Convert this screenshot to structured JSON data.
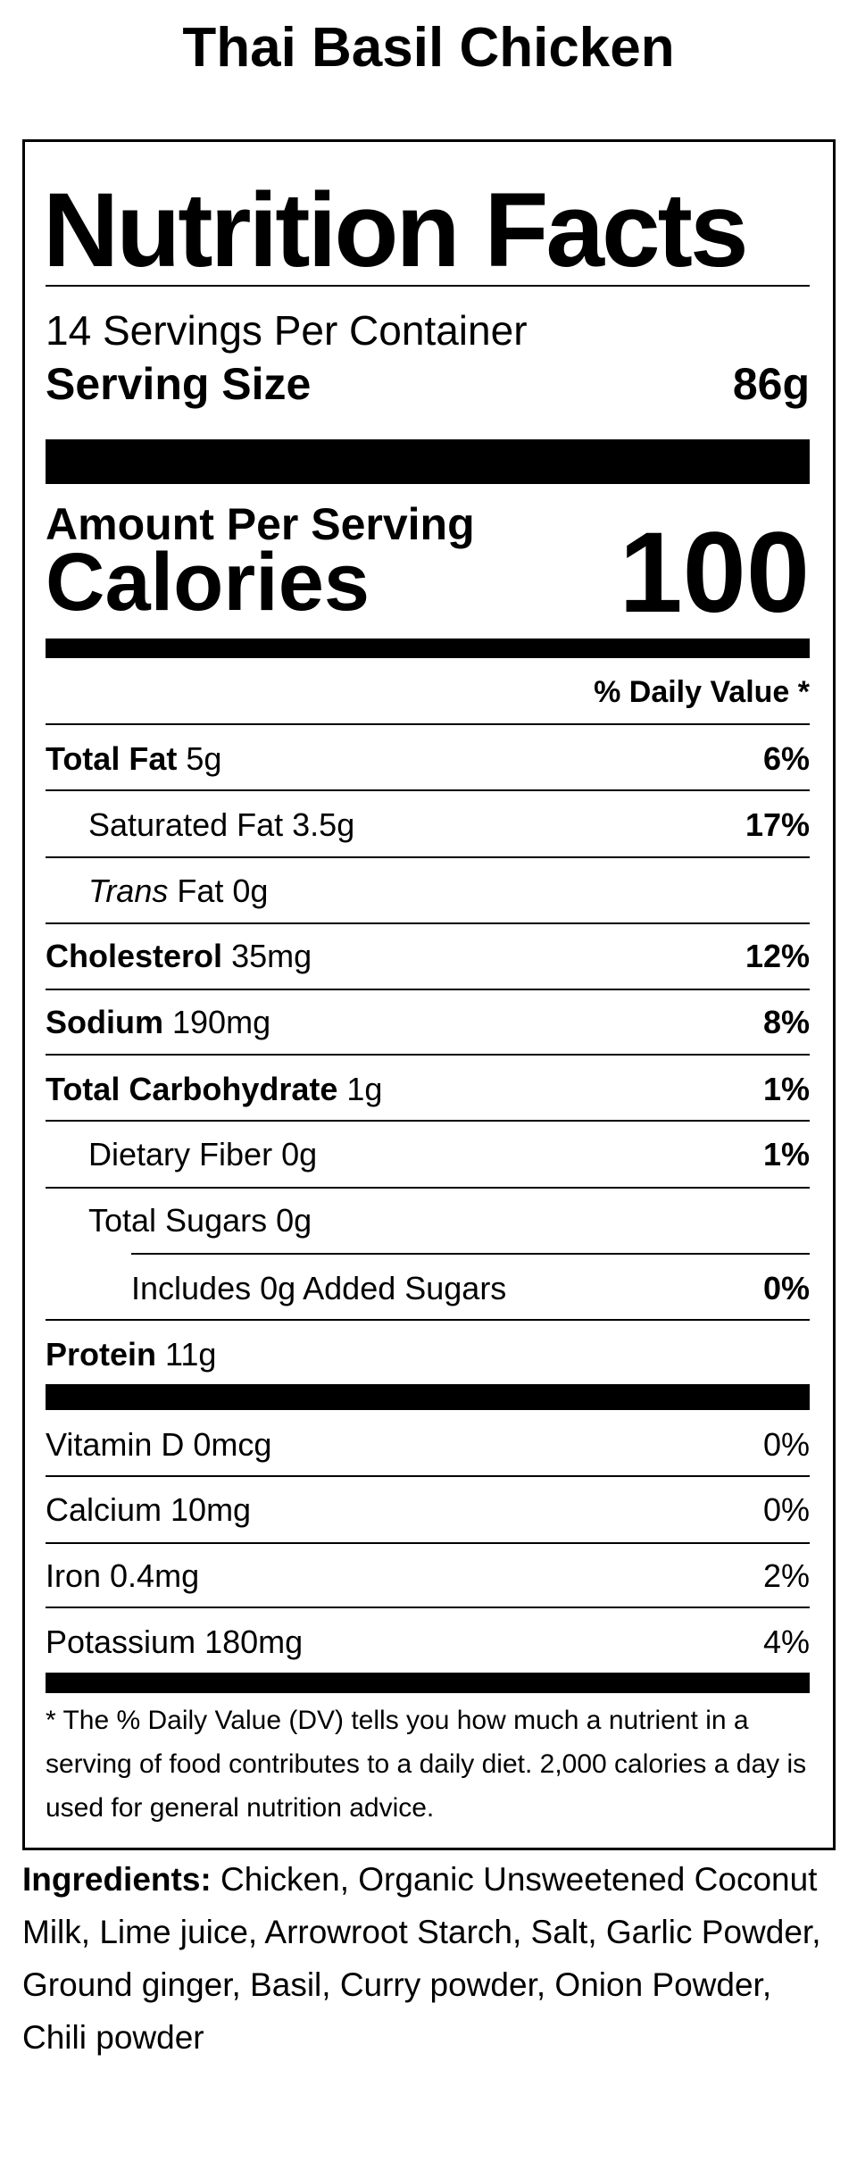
{
  "title": "Thai Basil Chicken",
  "label": {
    "heading": "Nutrition Facts",
    "servings": "14 Servings Per Container",
    "serving_size_label": "Serving Size",
    "serving_size_value": "86g",
    "amount_per_serving": "Amount Per Serving",
    "calories_label": "Calories",
    "calories_value": "100",
    "daily_value_header": "% Daily Value *",
    "nutrients": [
      {
        "name": "Total Fat",
        "amount": "5g",
        "dv": "6%"
      },
      {
        "name": "Saturated Fat",
        "amount": "3.5g",
        "dv": "17%"
      },
      {
        "prefix": "Trans",
        "name": "Fat",
        "amount": "0g"
      },
      {
        "name": "Cholesterol",
        "amount": "35mg",
        "dv": "12%"
      },
      {
        "name": "Sodium",
        "amount": "190mg",
        "dv": "8%"
      },
      {
        "name": "Total Carbohydrate",
        "amount": "1g",
        "dv": "1%"
      },
      {
        "name": "Dietary Fiber",
        "amount": "0g",
        "dv": "1%"
      },
      {
        "name": "Total Sugars",
        "amount": "0g"
      },
      {
        "name": "Includes 0g Added Sugars",
        "dv": "0%"
      },
      {
        "name": "Protein",
        "amount": "11g"
      }
    ],
    "vitamins": [
      {
        "name": "Vitamin D 0mcg",
        "dv": "0%"
      },
      {
        "name": "Calcium 10mg",
        "dv": "0%"
      },
      {
        "name": "Iron 0.4mg",
        "dv": "2%"
      },
      {
        "name": "Potassium 180mg",
        "dv": "4%"
      }
    ],
    "footnote": "* The % Daily Value (DV) tells you how much a nutrient in a serving of food contributes to a daily diet. 2,000 calories a day is used for general nutrition advice."
  },
  "ingredients": {
    "label": "Ingredients:",
    "text": "Chicken, Organic Unsweetened Coconut Milk, Lime juice, Arrowroot Starch, Salt, Garlic Powder, Ground ginger, Basil, Curry powder, Onion Powder, Chili powder"
  }
}
